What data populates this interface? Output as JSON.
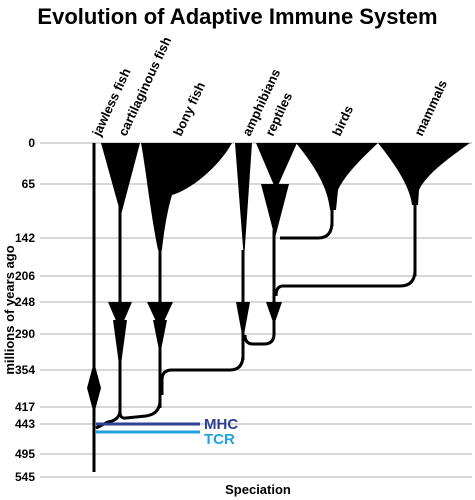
{
  "title": "Evolution of Adaptive Immune System",
  "y_axis_label": "millions of years ago",
  "x_axis_label": "Speciation",
  "ticks": [
    "0",
    "65",
    "142",
    "206",
    "248",
    "290",
    "354",
    "417",
    "443",
    "495",
    "545"
  ],
  "clades": [
    "jawless fish",
    "cartilaginous fish",
    "bony fish",
    "amphibians",
    "reptiles",
    "birds",
    "mammals"
  ],
  "annotations": {
    "mhc": "MHC",
    "tcr": "TCR"
  },
  "colors": {
    "mhc": "#2e3f94",
    "tcr": "#1ea3dc",
    "lines": "#000000",
    "grid": "#b0b0b0"
  }
}
